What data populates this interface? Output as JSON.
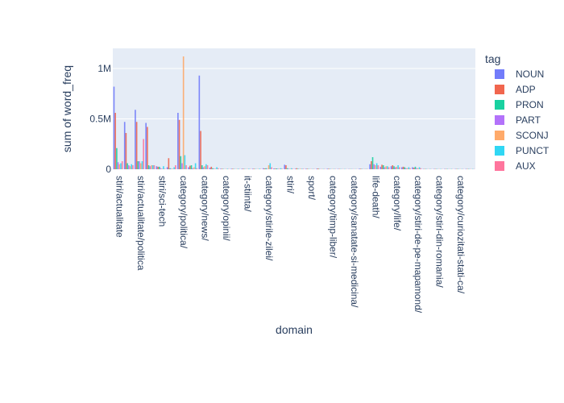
{
  "chart_data": {
    "type": "bar",
    "xlabel": "domain",
    "ylabel": "sum of word_freq",
    "ylim": [
      0,
      1200000
    ],
    "y_ticks": [
      {
        "value": 0,
        "label": "0"
      },
      {
        "value": 500000,
        "label": "0.5M"
      },
      {
        "value": 1000000,
        "label": "1M"
      }
    ],
    "grid": true,
    "legend_title": "tag",
    "legend_position": "right",
    "x_groups": [
      "stiri/actualitate",
      "stiri/actualitate/politica",
      "stiri/sci-tech",
      "category/politica/",
      "category/news/",
      "category/opinii/",
      "it-stiinta/",
      "category/stirile-zilei/",
      "stiri/",
      "sport/",
      "category/timp-liber/",
      "category/sanatate-si-medicina/",
      "life-death/",
      "category/life/",
      "category/stiri-de-pe-mapamond/",
      "category/stiri-din-romania/",
      "category/curiozitati-stati-ca/"
    ],
    "categories": [
      "stiri/actualitate",
      "stiri/actualitate",
      "stiri/actualitate/politica",
      "stiri/actualitate/politica",
      "stiri/sci-tech",
      "stiri/sci-tech",
      "category/politica/",
      "category/politica/",
      "category/news/",
      "category/news/",
      "category/opinii/",
      "category/opinii/",
      "it-stiinta/",
      "it-stiinta/",
      "category/stirile-zilei/",
      "category/stirile-zilei/",
      "stiri/",
      "stiri/",
      "sport/",
      "sport/",
      "category/timp-liber/",
      "category/timp-liber/",
      "category/sanatate-si-medicina/",
      "category/sanatate-si-medicina/",
      "life-death/",
      "life-death/",
      "category/life/",
      "category/life/",
      "category/stiri-de-pe-mapamond/",
      "category/stiri-de-pe-mapamond/",
      "category/stiri-din-romania/",
      "category/stiri-din-romania/",
      "category/curiozitati-stati-ca/",
      "category/curiozitati-stati-ca/"
    ],
    "series": [
      {
        "name": "NOUN",
        "color": "#636efa",
        "values": [
          820000,
          470000,
          590000,
          460000,
          30000,
          20000,
          560000,
          20000,
          930000,
          15000,
          5000,
          5000,
          5000,
          5000,
          10000,
          8000,
          45000,
          5000,
          5000,
          5000,
          5000,
          3000,
          2000,
          5000,
          50000,
          25000,
          30000,
          20000,
          20000,
          3000,
          3000,
          3000,
          3000,
          3000
        ]
      },
      {
        "name": "ADP",
        "color": "#ef553b",
        "values": [
          560000,
          360000,
          470000,
          420000,
          25000,
          110000,
          490000,
          35000,
          380000,
          25000,
          5000,
          5000,
          5000,
          5000,
          8000,
          6000,
          40000,
          10000,
          5000,
          8000,
          5000,
          3000,
          2000,
          5000,
          80000,
          45000,
          40000,
          25000,
          15000,
          3000,
          3000,
          3000,
          3000,
          3000
        ]
      },
      {
        "name": "PRON",
        "color": "#00cc96",
        "values": [
          210000,
          60000,
          80000,
          40000,
          25000,
          10000,
          130000,
          40000,
          40000,
          10000,
          3000,
          3000,
          3000,
          3000,
          10000,
          8000,
          10000,
          5000,
          3000,
          3000,
          3000,
          2000,
          2000,
          3000,
          120000,
          40000,
          30000,
          20000,
          25000,
          3000,
          3000,
          3000,
          3000,
          3000
        ]
      },
      {
        "name": "PART",
        "color": "#ab63fa",
        "values": [
          70000,
          40000,
          80000,
          30000,
          10000,
          5000,
          60000,
          10000,
          20000,
          5000,
          2000,
          2000,
          2000,
          2000,
          5000,
          5000,
          5000,
          3000,
          2000,
          2000,
          2000,
          2000,
          2000,
          2000,
          50000,
          20000,
          20000,
          10000,
          10000,
          2000,
          2000,
          2000,
          2000,
          2000
        ]
      },
      {
        "name": "SCONJ",
        "color": "#ffa15a",
        "values": [
          50000,
          30000,
          60000,
          40000,
          5000,
          5000,
          1120000,
          20000,
          30000,
          5000,
          3000,
          3000,
          3000,
          3000,
          40000,
          5000,
          5000,
          5000,
          3000,
          3000,
          3000,
          2000,
          2000,
          3000,
          40000,
          30000,
          25000,
          10000,
          10000,
          2000,
          2000,
          2000,
          2000,
          2000
        ]
      },
      {
        "name": "PUNCT",
        "color": "#19d3f3",
        "values": [
          60000,
          50000,
          80000,
          40000,
          30000,
          20000,
          140000,
          60000,
          50000,
          20000,
          5000,
          5000,
          5000,
          5000,
          60000,
          10000,
          10000,
          5000,
          3000,
          3000,
          3000,
          3000,
          2000,
          3000,
          60000,
          30000,
          40000,
          20000,
          20000,
          3000,
          3000,
          3000,
          3000,
          3000
        ]
      },
      {
        "name": "AUX",
        "color": "#ff6692",
        "values": [
          80000,
          40000,
          300000,
          40000,
          5000,
          40000,
          40000,
          10000,
          40000,
          10000,
          3000,
          3000,
          3000,
          3000,
          20000,
          5000,
          5000,
          5000,
          3000,
          3000,
          3000,
          2000,
          2000,
          3000,
          40000,
          20000,
          20000,
          10000,
          10000,
          2000,
          2000,
          2000,
          2000,
          2000
        ]
      }
    ]
  }
}
